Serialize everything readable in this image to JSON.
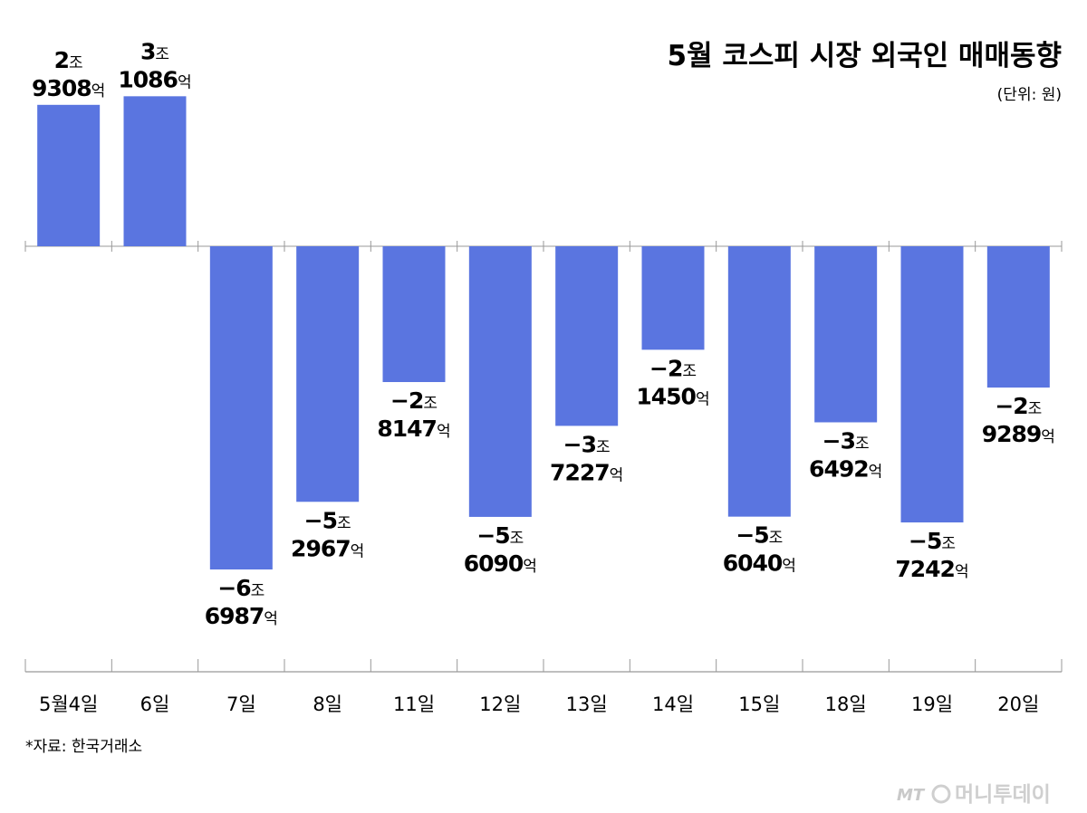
{
  "header": {
    "title": "5월 코스피 시장 외국인 매매동향",
    "unit": "(단위: 원)"
  },
  "footer": {
    "source": "*자료: 한국거래소",
    "watermark_logo": "MT",
    "watermark_text": "머니투데이"
  },
  "colors": {
    "bar": "#5a75e0",
    "axis": "#999999",
    "text": "#111111"
  },
  "chart_data": {
    "type": "bar",
    "title": "5월 코스피 시장 외국인 매매동향",
    "unit": "원",
    "categories": [
      "5월4일",
      "6일",
      "7일",
      "8일",
      "11일",
      "12일",
      "13일",
      "14일",
      "15일",
      "18일",
      "19일",
      "20일"
    ],
    "values": [
      29308,
      31086,
      -66987,
      -52967,
      -28147,
      -56090,
      -37227,
      -21450,
      -56040,
      -36492,
      -57242,
      -29289
    ],
    "value_unit": "억원",
    "labels": [
      {
        "sign": "",
        "jo": "2",
        "eok": "9308"
      },
      {
        "sign": "",
        "jo": "3",
        "eok": "1086"
      },
      {
        "sign": "−",
        "jo": "6",
        "eok": "6987"
      },
      {
        "sign": "−",
        "jo": "5",
        "eok": "2967"
      },
      {
        "sign": "−",
        "jo": "2",
        "eok": "8147"
      },
      {
        "sign": "−",
        "jo": "5",
        "eok": "6090"
      },
      {
        "sign": "−",
        "jo": "3",
        "eok": "7227"
      },
      {
        "sign": "−",
        "jo": "2",
        "eok": "1450"
      },
      {
        "sign": "−",
        "jo": "5",
        "eok": "6040"
      },
      {
        "sign": "−",
        "jo": "3",
        "eok": "6492"
      },
      {
        "sign": "−",
        "jo": "5",
        "eok": "7242"
      },
      {
        "sign": "−",
        "jo": "2",
        "eok": "9289"
      }
    ],
    "jo_suffix": "조",
    "eok_suffix": "억",
    "grid": false,
    "legend": "none"
  }
}
